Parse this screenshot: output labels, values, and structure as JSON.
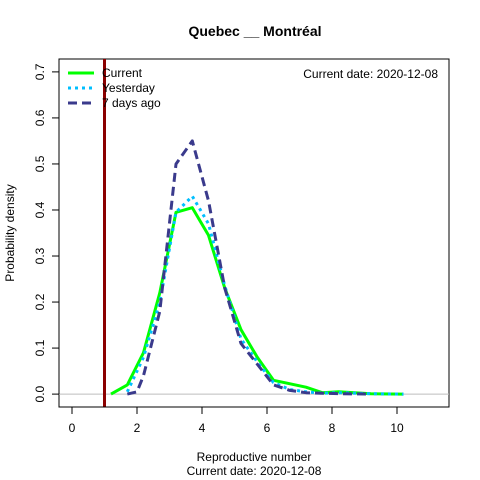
{
  "chart_data": {
    "type": "line",
    "title": "Quebec __ Montréal",
    "xlabel": "Reproductive number",
    "ylabel": "Probability density",
    "subtitle": "Current date:  2020-12-08",
    "annotation": "Current date:  2020-12-08",
    "xlim": [
      -0.4,
      11.6
    ],
    "ylim": [
      -0.028,
      0.728
    ],
    "x_ticks": [
      "0",
      "2",
      "4",
      "6",
      "8",
      "10"
    ],
    "y_ticks": [
      "0.0",
      "0.1",
      "0.2",
      "0.3",
      "0.4",
      "0.5",
      "0.6",
      "0.7"
    ],
    "legend_position": "top-left",
    "reference_line": {
      "x": 1,
      "color": "#8b0000"
    },
    "baseline_color": "#bebebe",
    "series": [
      {
        "name": "Current",
        "color": "#00ff00",
        "style": "solid",
        "x": [
          1.2,
          1.7,
          2.2,
          2.7,
          3.2,
          3.7,
          4.2,
          4.7,
          5.2,
          5.7,
          6.2,
          7.2,
          7.7,
          8.2,
          9.2,
          10.2
        ],
        "y": [
          0.0,
          0.02,
          0.09,
          0.22,
          0.395,
          0.405,
          0.345,
          0.23,
          0.14,
          0.08,
          0.03,
          0.015,
          0.003,
          0.005,
          0.001,
          0.0
        ]
      },
      {
        "name": "Yesterday",
        "color": "#00bfff",
        "style": "dotted",
        "x": [
          1.7,
          2.2,
          2.7,
          3.2,
          3.7,
          4.2,
          4.7,
          5.2,
          5.7,
          6.2,
          6.7,
          7.2,
          7.7,
          8.2,
          9.2,
          10.2
        ],
        "y": [
          0.005,
          0.08,
          0.2,
          0.395,
          0.43,
          0.37,
          0.235,
          0.12,
          0.07,
          0.025,
          0.01,
          0.005,
          0.002,
          0.003,
          0.001,
          0.0
        ]
      },
      {
        "name": "7 days ago",
        "color": "#3a3a8c",
        "style": "dashed",
        "x": [
          1.7,
          2.0,
          2.2,
          2.7,
          3.2,
          3.7,
          4.2,
          4.7,
          5.2,
          5.7,
          6.2,
          6.7,
          7.2,
          7.7,
          8.2,
          9.2
        ],
        "y": [
          0.0,
          0.005,
          0.04,
          0.18,
          0.5,
          0.55,
          0.42,
          0.23,
          0.11,
          0.065,
          0.02,
          0.008,
          0.003,
          0.002,
          0.001,
          0.0
        ]
      }
    ]
  }
}
